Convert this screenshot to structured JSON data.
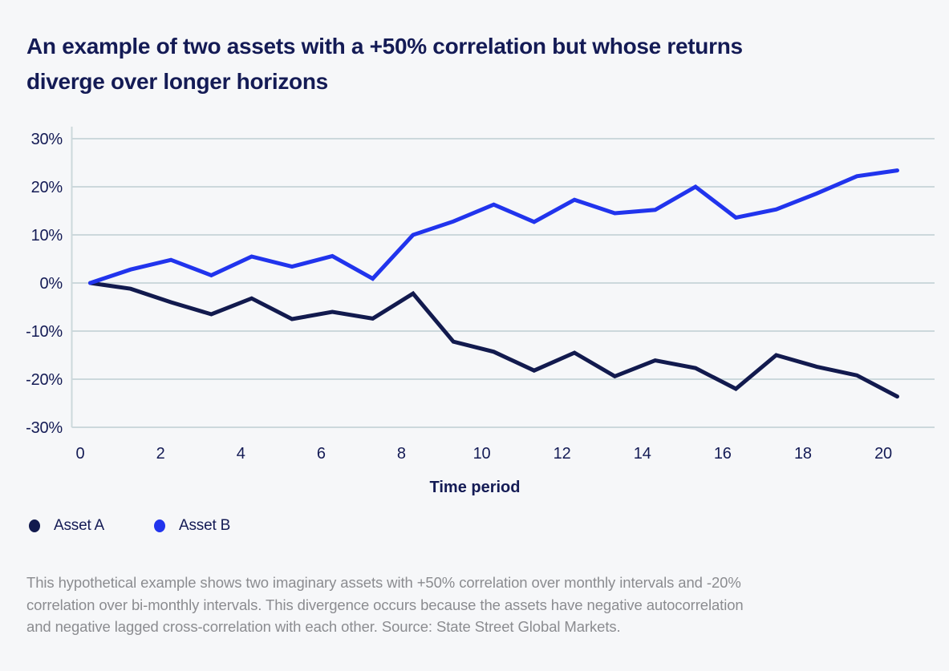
{
  "header": {
    "title_lines": [
      "An example of two assets with a +50% correlation but whose returns",
      "diverge over longer horizons"
    ]
  },
  "chart_data": {
    "type": "line",
    "title": "An example of two assets with a +50% correlation but whose returns diverge over longer horizons",
    "xlabel": "Time period",
    "ylabel": "",
    "ylim": [
      -30,
      30
    ],
    "xlim": [
      0,
      20
    ],
    "grid": "horizontal",
    "legend_position": "bottom-left",
    "ytick_labels": [
      "30%",
      "20%",
      "10%",
      "0%",
      "-10%",
      "-20%",
      "-30%"
    ],
    "ytick_values": [
      30,
      20,
      10,
      0,
      -10,
      -20,
      -30
    ],
    "xtick_labels": [
      "0",
      "2",
      "4",
      "6",
      "8",
      "10",
      "12",
      "14",
      "16",
      "18",
      "20"
    ],
    "xtick_values": [
      0,
      2,
      4,
      6,
      8,
      10,
      12,
      14,
      16,
      18,
      20
    ],
    "x": [
      0,
      1,
      2,
      3,
      4,
      5,
      6,
      7,
      8,
      9,
      10,
      11,
      12,
      13,
      14,
      15,
      16,
      17,
      18,
      19,
      20
    ],
    "series": [
      {
        "name": "Asset A",
        "color": "#121a4e",
        "values": [
          0,
          -1.2,
          -4.0,
          -6.5,
          -3.2,
          -7.5,
          -6.0,
          -7.4,
          -2.2,
          -12.2,
          -14.3,
          -18.2,
          -14.5,
          -19.4,
          -16.1,
          -17.7,
          -22.0,
          -15.0,
          -17.4,
          -19.2,
          -23.6
        ]
      },
      {
        "name": "Asset B",
        "color": "#2134ed",
        "values": [
          0,
          2.8,
          4.8,
          1.6,
          5.5,
          3.4,
          5.6,
          0.9,
          10.0,
          12.8,
          16.3,
          12.7,
          17.3,
          14.5,
          15.2,
          20.0,
          13.6,
          15.3,
          18.6,
          22.2,
          23.4
        ]
      }
    ]
  },
  "footnote": {
    "lines": [
      "This hypothetical example shows two imaginary assets with +50% correlation over monthly intervals and -20%",
      "correlation over bi-monthly intervals. This divergence occurs because the assets have negative autocorrelation",
      "and negative lagged cross-correlation with each other. Source: State Street Global Markets."
    ]
  },
  "colors": {
    "background": "#f6f7f9",
    "text_navy": "#141b55",
    "gridline": "#ccd8dc",
    "footnote_grey": "#8b8c90",
    "asset_a": "#121a4e",
    "asset_b": "#2134ed"
  }
}
